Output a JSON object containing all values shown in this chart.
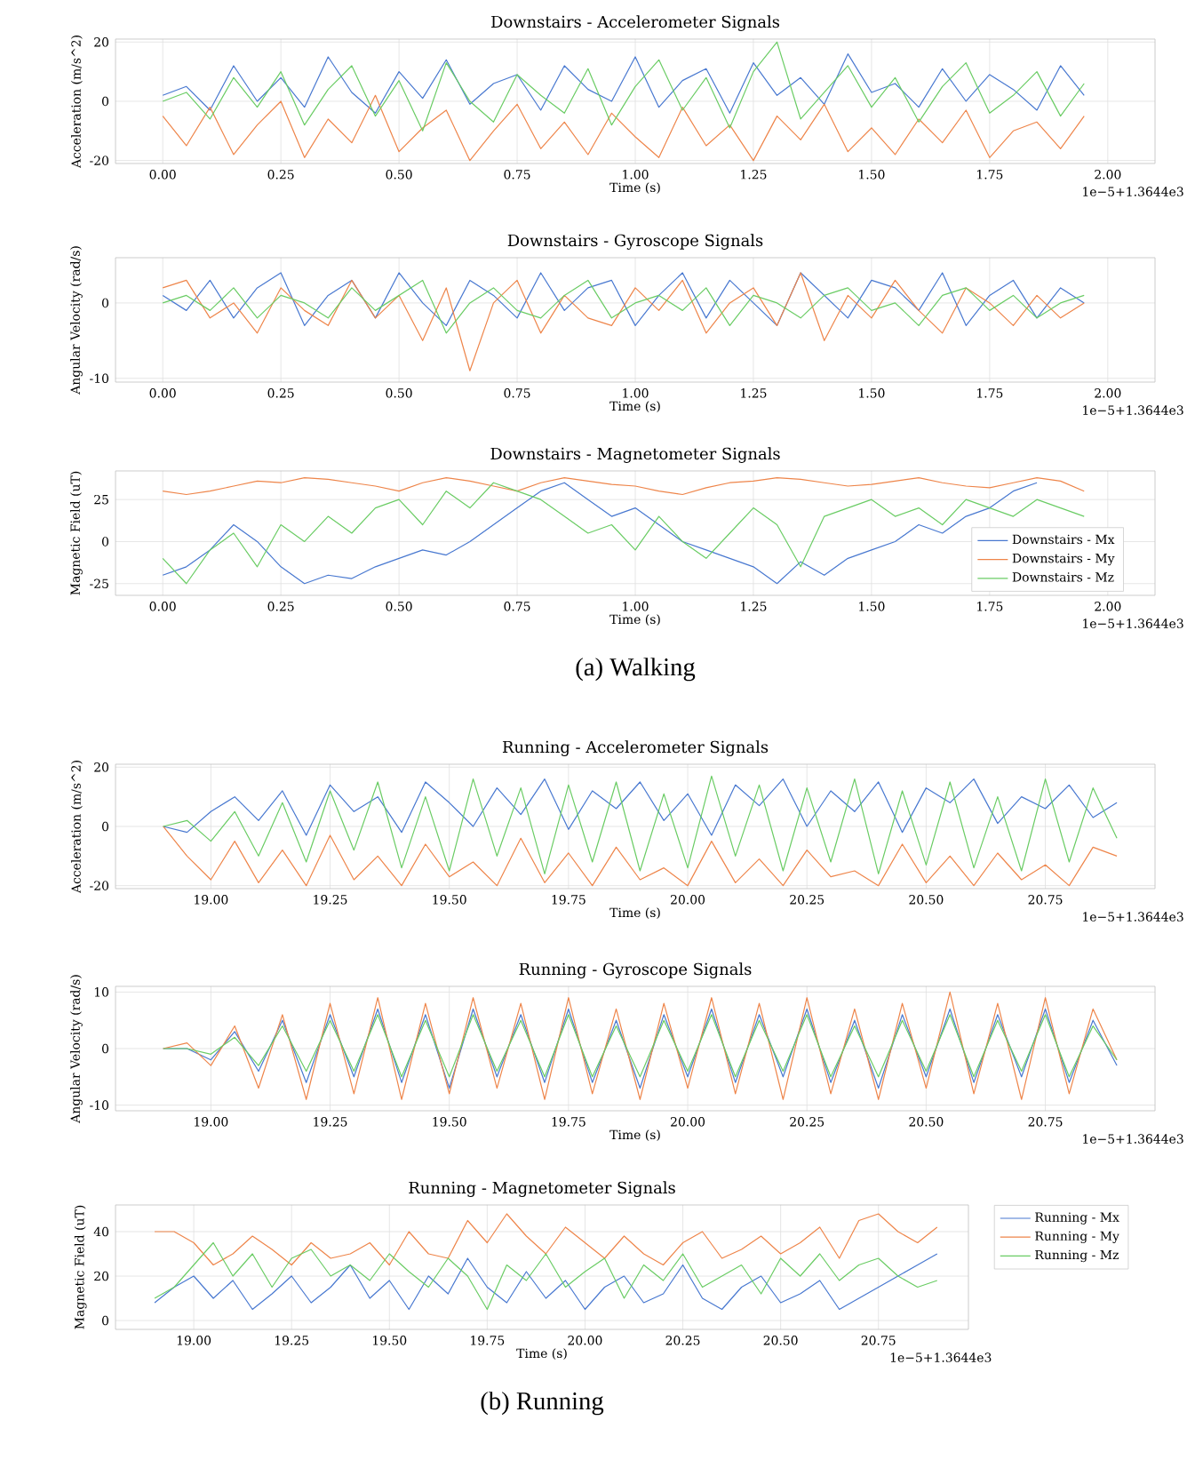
{
  "chart_data": [
    {
      "type": "line",
      "title": "Downstairs - Accelerometer Signals",
      "xlabel": "Time (s)",
      "ylabel": "Acceleration (m/s^2)",
      "annotations": [
        "1e−5+1.3644e3"
      ],
      "grid": true,
      "legend": false,
      "marker": "none",
      "line_style": "solid",
      "xlim": [
        -0.1,
        2.1
      ],
      "ylim": [
        -21,
        21
      ],
      "xticks": [
        {
          "value": 0,
          "label": "0.00"
        },
        {
          "value": 0.25,
          "label": "0.25"
        },
        {
          "value": 0.5,
          "label": "0.50"
        },
        {
          "value": 0.75,
          "label": "0.75"
        },
        {
          "value": 1,
          "label": "1.00"
        },
        {
          "value": 1.25,
          "label": "1.25"
        },
        {
          "value": 1.5,
          "label": "1.50"
        },
        {
          "value": 1.75,
          "label": "1.75"
        },
        {
          "value": 2,
          "label": "2.00"
        }
      ],
      "yticks": [
        -20,
        0,
        20
      ],
      "x": [
        0,
        0.05,
        0.1,
        0.15,
        0.2,
        0.25,
        0.3,
        0.35,
        0.4,
        0.45,
        0.5,
        0.55,
        0.6,
        0.65,
        0.7,
        0.75,
        0.8,
        0.85,
        0.9,
        0.95,
        1,
        1.05,
        1.1,
        1.15,
        1.2,
        1.25,
        1.3,
        1.35,
        1.4,
        1.45,
        1.5,
        1.55,
        1.6,
        1.65,
        1.7,
        1.75,
        1.8,
        1.85,
        1.9,
        1.95
      ],
      "series": [
        {
          "color": "#4878d0",
          "values": [
            2,
            5,
            -3,
            12,
            0,
            8,
            -2,
            15,
            3,
            -4,
            10,
            1,
            14,
            -1,
            6,
            9,
            -3,
            12,
            4,
            0,
            15,
            -2,
            7,
            11,
            -4,
            13,
            2,
            8,
            -1,
            16,
            3,
            6,
            -2,
            11,
            0,
            9,
            4,
            -3,
            12,
            2
          ]
        },
        {
          "color": "#ee854a",
          "values": [
            -5,
            -15,
            -2,
            -18,
            -8,
            0,
            -19,
            -6,
            -14,
            2,
            -17,
            -9,
            -3,
            -20,
            -10,
            -1,
            -16,
            -7,
            -18,
            -4,
            -12,
            -19,
            -2,
            -15,
            -8,
            -20,
            -5,
            -13,
            -1,
            -17,
            -9,
            -18,
            -6,
            -14,
            -3,
            -19,
            -10,
            -7,
            -16,
            -5
          ]
        },
        {
          "color": "#6acc64",
          "values": [
            0,
            3,
            -6,
            8,
            -2,
            10,
            -8,
            4,
            12,
            -5,
            7,
            -10,
            13,
            0,
            -7,
            9,
            2,
            -4,
            11,
            -8,
            5,
            14,
            -3,
            8,
            -9,
            10,
            20,
            -6,
            3,
            12,
            -2,
            8,
            -7,
            5,
            13,
            -4,
            2,
            10,
            -5,
            6
          ]
        }
      ]
    },
    {
      "type": "line",
      "title": "Downstairs - Gyroscope Signals",
      "xlabel": "Time (s)",
      "ylabel": "Angular Velocity (rad/s)",
      "annotations": [
        "1e−5+1.3644e3"
      ],
      "grid": true,
      "legend": false,
      "marker": "none",
      "line_style": "solid",
      "xlim": [
        -0.1,
        2.1
      ],
      "ylim": [
        -10.5,
        6
      ],
      "xticks": [
        {
          "value": 0,
          "label": "0.00"
        },
        {
          "value": 0.25,
          "label": "0.25"
        },
        {
          "value": 0.5,
          "label": "0.50"
        },
        {
          "value": 0.75,
          "label": "0.75"
        },
        {
          "value": 1,
          "label": "1.00"
        },
        {
          "value": 1.25,
          "label": "1.25"
        },
        {
          "value": 1.5,
          "label": "1.50"
        },
        {
          "value": 1.75,
          "label": "1.75"
        },
        {
          "value": 2,
          "label": "2.00"
        }
      ],
      "yticks": [
        -10,
        0
      ],
      "x": [
        0,
        0.05,
        0.1,
        0.15,
        0.2,
        0.25,
        0.3,
        0.35,
        0.4,
        0.45,
        0.5,
        0.55,
        0.6,
        0.65,
        0.7,
        0.75,
        0.8,
        0.85,
        0.9,
        0.95,
        1,
        1.05,
        1.1,
        1.15,
        1.2,
        1.25,
        1.3,
        1.35,
        1.4,
        1.45,
        1.5,
        1.55,
        1.6,
        1.65,
        1.7,
        1.75,
        1.8,
        1.85,
        1.9,
        1.95
      ],
      "series": [
        {
          "color": "#4878d0",
          "values": [
            1,
            -1,
            3,
            -2,
            2,
            4,
            -3,
            1,
            3,
            -2,
            4,
            0,
            -3,
            3,
            1,
            -2,
            4,
            -1,
            2,
            3,
            -3,
            1,
            4,
            -2,
            3,
            0,
            -3,
            4,
            1,
            -2,
            3,
            2,
            -1,
            4,
            -3,
            1,
            3,
            -2,
            2,
            0
          ]
        },
        {
          "color": "#ee854a",
          "values": [
            2,
            3,
            -2,
            0,
            -4,
            2,
            -1,
            -3,
            3,
            -2,
            1,
            -5,
            2,
            -9,
            0,
            3,
            -4,
            1,
            -2,
            -3,
            2,
            -1,
            3,
            -4,
            0,
            2,
            -3,
            4,
            -5,
            1,
            -2,
            3,
            -1,
            -4,
            2,
            0,
            -3,
            1,
            -2,
            0
          ]
        },
        {
          "color": "#6acc64",
          "values": [
            0,
            1,
            -1,
            2,
            -2,
            1,
            0,
            -2,
            2,
            -1,
            1,
            3,
            -4,
            0,
            2,
            -1,
            -2,
            1,
            3,
            -2,
            0,
            1,
            -1,
            2,
            -3,
            1,
            0,
            -2,
            1,
            2,
            -1,
            0,
            -3,
            1,
            2,
            -1,
            1,
            -2,
            0,
            1
          ]
        }
      ]
    },
    {
      "type": "line",
      "title": "Downstairs - Magnetometer Signals",
      "xlabel": "Time (s)",
      "ylabel": "Magnetic Field (uT)",
      "annotations": [
        "1e−5+1.3644e3",
        "(a) Walking"
      ],
      "grid": true,
      "legend": "bottom right",
      "marker": "none",
      "line_style": "solid",
      "xlim": [
        -0.1,
        2.1
      ],
      "ylim": [
        -32,
        42
      ],
      "xticks": [
        {
          "value": 0,
          "label": "0.00"
        },
        {
          "value": 0.25,
          "label": "0.25"
        },
        {
          "value": 0.5,
          "label": "0.50"
        },
        {
          "value": 0.75,
          "label": "0.75"
        },
        {
          "value": 1,
          "label": "1.00"
        },
        {
          "value": 1.25,
          "label": "1.25"
        },
        {
          "value": 1.5,
          "label": "1.50"
        },
        {
          "value": 1.75,
          "label": "1.75"
        },
        {
          "value": 2,
          "label": "2.00"
        }
      ],
      "yticks": [
        -25,
        0,
        25
      ],
      "x": [
        0,
        0.05,
        0.1,
        0.15,
        0.2,
        0.25,
        0.3,
        0.35,
        0.4,
        0.45,
        0.5,
        0.55,
        0.6,
        0.65,
        0.7,
        0.75,
        0.8,
        0.85,
        0.9,
        0.95,
        1,
        1.05,
        1.1,
        1.15,
        1.2,
        1.25,
        1.3,
        1.35,
        1.4,
        1.45,
        1.5,
        1.55,
        1.6,
        1.65,
        1.7,
        1.75,
        1.8,
        1.85,
        1.9,
        1.95
      ],
      "series": [
        {
          "name": "Downstairs - Mx",
          "color": "#4878d0",
          "values": [
            -20,
            -15,
            -5,
            10,
            0,
            -15,
            -25,
            -20,
            -22,
            -15,
            -10,
            -5,
            -8,
            0,
            10,
            20,
            30,
            35,
            25,
            15,
            20,
            10,
            0,
            -5,
            -10,
            -15,
            -25,
            -12,
            -20,
            -10,
            -5,
            0,
            10,
            5,
            15,
            20,
            30,
            35,
            null,
            null
          ]
        },
        {
          "name": "Downstairs - My",
          "color": "#ee854a",
          "values": [
            30,
            28,
            30,
            33,
            36,
            35,
            38,
            37,
            35,
            33,
            30,
            35,
            38,
            36,
            33,
            30,
            35,
            38,
            36,
            34,
            33,
            30,
            28,
            32,
            35,
            36,
            38,
            37,
            35,
            33,
            34,
            36,
            38,
            35,
            33,
            32,
            35,
            38,
            36,
            30
          ]
        },
        {
          "name": "Downstairs - Mz",
          "color": "#6acc64",
          "values": [
            -10,
            -25,
            -5,
            5,
            -15,
            10,
            0,
            15,
            5,
            20,
            25,
            10,
            30,
            20,
            35,
            30,
            25,
            15,
            5,
            10,
            -5,
            15,
            0,
            -10,
            5,
            20,
            10,
            -15,
            15,
            20,
            25,
            15,
            20,
            10,
            25,
            20,
            15,
            25,
            20,
            15
          ]
        }
      ]
    },
    {
      "type": "line",
      "title": "Running - Accelerometer Signals",
      "xlabel": "Time (s)",
      "ylabel": "Acceleration (m/s^2)",
      "annotations": [
        "1e−5+1.3644e3"
      ],
      "grid": true,
      "legend": false,
      "marker": "none",
      "line_style": "solid",
      "xlim": [
        18.8,
        20.98
      ],
      "ylim": [
        -21,
        21
      ],
      "xticks": [
        {
          "value": 19,
          "label": "19.00"
        },
        {
          "value": 19.25,
          "label": "19.25"
        },
        {
          "value": 19.5,
          "label": "19.50"
        },
        {
          "value": 19.75,
          "label": "19.75"
        },
        {
          "value": 20,
          "label": "20.00"
        },
        {
          "value": 20.25,
          "label": "20.25"
        },
        {
          "value": 20.5,
          "label": "20.50"
        },
        {
          "value": 20.75,
          "label": "20.75"
        }
      ],
      "yticks": [
        -20,
        0,
        20
      ],
      "x": [
        18.9,
        18.95,
        19,
        19.05,
        19.1,
        19.15,
        19.2,
        19.25,
        19.3,
        19.35,
        19.4,
        19.45,
        19.5,
        19.55,
        19.6,
        19.65,
        19.7,
        19.75,
        19.8,
        19.85,
        19.9,
        19.95,
        20,
        20.05,
        20.1,
        20.15,
        20.2,
        20.25,
        20.3,
        20.35,
        20.4,
        20.45,
        20.5,
        20.55,
        20.6,
        20.65,
        20.7,
        20.75,
        20.8,
        20.85,
        20.9
      ],
      "series": [
        {
          "color": "#4878d0",
          "values": [
            0,
            -2,
            5,
            10,
            2,
            12,
            -3,
            14,
            5,
            10,
            -2,
            15,
            8,
            0,
            13,
            4,
            16,
            -1,
            12,
            6,
            15,
            2,
            11,
            -3,
            14,
            7,
            16,
            0,
            12,
            5,
            15,
            -2,
            13,
            8,
            16,
            1,
            10,
            6,
            14,
            3,
            8
          ]
        },
        {
          "color": "#ee854a",
          "values": [
            0,
            -10,
            -18,
            -5,
            -19,
            -8,
            -20,
            -3,
            -18,
            -10,
            -20,
            -6,
            -17,
            -12,
            -20,
            -4,
            -19,
            -9,
            -20,
            -7,
            -18,
            -14,
            -20,
            -5,
            -19,
            -11,
            -20,
            -8,
            -17,
            -15,
            -20,
            -6,
            -19,
            -10,
            -20,
            -9,
            -18,
            -13,
            -20,
            -7,
            -10
          ]
        },
        {
          "color": "#6acc64",
          "values": [
            0,
            2,
            -5,
            5,
            -10,
            8,
            -12,
            12,
            -8,
            15,
            -14,
            10,
            -15,
            16,
            -10,
            13,
            -16,
            14,
            -12,
            15,
            -15,
            11,
            -14,
            17,
            -10,
            14,
            -15,
            13,
            -12,
            16,
            -16,
            12,
            -13,
            15,
            -14,
            10,
            -15,
            16,
            -12,
            13,
            -4
          ]
        }
      ]
    },
    {
      "type": "line",
      "title": "Running - Gyroscope Signals",
      "xlabel": "Time (s)",
      "ylabel": "Angular Velocity (rad/s)",
      "annotations": [
        "1e−5+1.3644e3"
      ],
      "grid": true,
      "legend": false,
      "marker": "none",
      "line_style": "solid",
      "xlim": [
        18.8,
        20.98
      ],
      "ylim": [
        -11,
        11
      ],
      "xticks": [
        {
          "value": 19,
          "label": "19.00"
        },
        {
          "value": 19.25,
          "label": "19.25"
        },
        {
          "value": 19.5,
          "label": "19.50"
        },
        {
          "value": 19.75,
          "label": "19.75"
        },
        {
          "value": 20,
          "label": "20.00"
        },
        {
          "value": 20.25,
          "label": "20.25"
        },
        {
          "value": 20.5,
          "label": "20.50"
        },
        {
          "value": 20.75,
          "label": "20.75"
        }
      ],
      "yticks": [
        -10,
        0,
        10
      ],
      "x": [
        18.9,
        18.95,
        19,
        19.05,
        19.1,
        19.15,
        19.2,
        19.25,
        19.3,
        19.35,
        19.4,
        19.45,
        19.5,
        19.55,
        19.6,
        19.65,
        19.7,
        19.75,
        19.8,
        19.85,
        19.9,
        19.95,
        20,
        20.05,
        20.1,
        20.15,
        20.2,
        20.25,
        20.3,
        20.35,
        20.4,
        20.45,
        20.5,
        20.55,
        20.6,
        20.65,
        20.7,
        20.75,
        20.8,
        20.85,
        20.9
      ],
      "series": [
        {
          "color": "#4878d0",
          "values": [
            0,
            0,
            -2,
            3,
            -4,
            5,
            -6,
            6,
            -5,
            7,
            -6,
            6,
            -7,
            7,
            -5,
            6,
            -6,
            7,
            -6,
            5,
            -7,
            6,
            -5,
            7,
            -6,
            6,
            -5,
            7,
            -6,
            5,
            -7,
            6,
            -5,
            7,
            -6,
            6,
            -5,
            7,
            -6,
            5,
            -3
          ]
        },
        {
          "color": "#ee854a",
          "values": [
            0,
            1,
            -3,
            4,
            -7,
            6,
            -9,
            8,
            -8,
            9,
            -9,
            8,
            -8,
            9,
            -7,
            8,
            -9,
            9,
            -8,
            7,
            -9,
            8,
            -7,
            9,
            -8,
            8,
            -9,
            9,
            -8,
            7,
            -9,
            8,
            -7,
            10,
            -8,
            8,
            -9,
            9,
            -8,
            7,
            -2
          ]
        },
        {
          "color": "#6acc64",
          "values": [
            0,
            0,
            -1,
            2,
            -3,
            4,
            -4,
            5,
            -4,
            6,
            -5,
            5,
            -5,
            6,
            -4,
            5,
            -5,
            6,
            -5,
            4,
            -5,
            5,
            -4,
            6,
            -5,
            5,
            -4,
            6,
            -5,
            4,
            -5,
            5,
            -4,
            6,
            -5,
            5,
            -4,
            6,
            -5,
            4,
            -2
          ]
        }
      ]
    },
    {
      "type": "line",
      "title": "Running - Magnetometer Signals",
      "xlabel": "Time (s)",
      "ylabel": "Magnetic Field (uT)",
      "annotations": [
        "1e−5+1.3644e3",
        "(b) Running"
      ],
      "grid": true,
      "legend": "right",
      "marker": "none",
      "line_style": "solid",
      "xlim": [
        18.8,
        20.98
      ],
      "ylim": [
        -4,
        52
      ],
      "xticks": [
        {
          "value": 19,
          "label": "19.00"
        },
        {
          "value": 19.25,
          "label": "19.25"
        },
        {
          "value": 19.5,
          "label": "19.50"
        },
        {
          "value": 19.75,
          "label": "19.75"
        },
        {
          "value": 20,
          "label": "20.00"
        },
        {
          "value": 20.25,
          "label": "20.25"
        },
        {
          "value": 20.5,
          "label": "20.50"
        },
        {
          "value": 20.75,
          "label": "20.75"
        }
      ],
      "yticks": [
        0,
        20,
        40
      ],
      "x": [
        18.9,
        18.95,
        19,
        19.05,
        19.1,
        19.15,
        19.2,
        19.25,
        19.3,
        19.35,
        19.4,
        19.45,
        19.5,
        19.55,
        19.6,
        19.65,
        19.7,
        19.75,
        19.8,
        19.85,
        19.9,
        19.95,
        20,
        20.05,
        20.1,
        20.15,
        20.2,
        20.25,
        20.3,
        20.35,
        20.4,
        20.45,
        20.5,
        20.55,
        20.6,
        20.65,
        20.7,
        20.75,
        20.8,
        20.85,
        20.9
      ],
      "series": [
        {
          "name": "Running - Mx",
          "color": "#4878d0",
          "values": [
            8,
            15,
            20,
            10,
            18,
            5,
            12,
            20,
            8,
            15,
            25,
            10,
            18,
            5,
            20,
            12,
            28,
            15,
            8,
            22,
            10,
            18,
            5,
            15,
            20,
            8,
            12,
            25,
            10,
            5,
            15,
            20,
            8,
            12,
            18,
            5,
            10,
            15,
            20,
            25,
            30
          ]
        },
        {
          "name": "Running - My",
          "color": "#ee854a",
          "values": [
            40,
            40,
            35,
            25,
            30,
            38,
            32,
            25,
            35,
            28,
            30,
            35,
            25,
            40,
            30,
            28,
            45,
            35,
            48,
            38,
            30,
            42,
            35,
            28,
            38,
            30,
            25,
            35,
            40,
            28,
            32,
            38,
            30,
            35,
            42,
            28,
            45,
            48,
            40,
            35,
            42
          ]
        },
        {
          "name": "Running - Mz",
          "color": "#6acc64",
          "values": [
            10,
            15,
            25,
            35,
            20,
            30,
            15,
            28,
            32,
            20,
            25,
            18,
            30,
            22,
            15,
            28,
            20,
            5,
            25,
            18,
            30,
            15,
            22,
            28,
            10,
            25,
            18,
            30,
            15,
            20,
            25,
            12,
            28,
            20,
            30,
            18,
            25,
            28,
            20,
            15,
            18
          ]
        }
      ]
    }
  ]
}
